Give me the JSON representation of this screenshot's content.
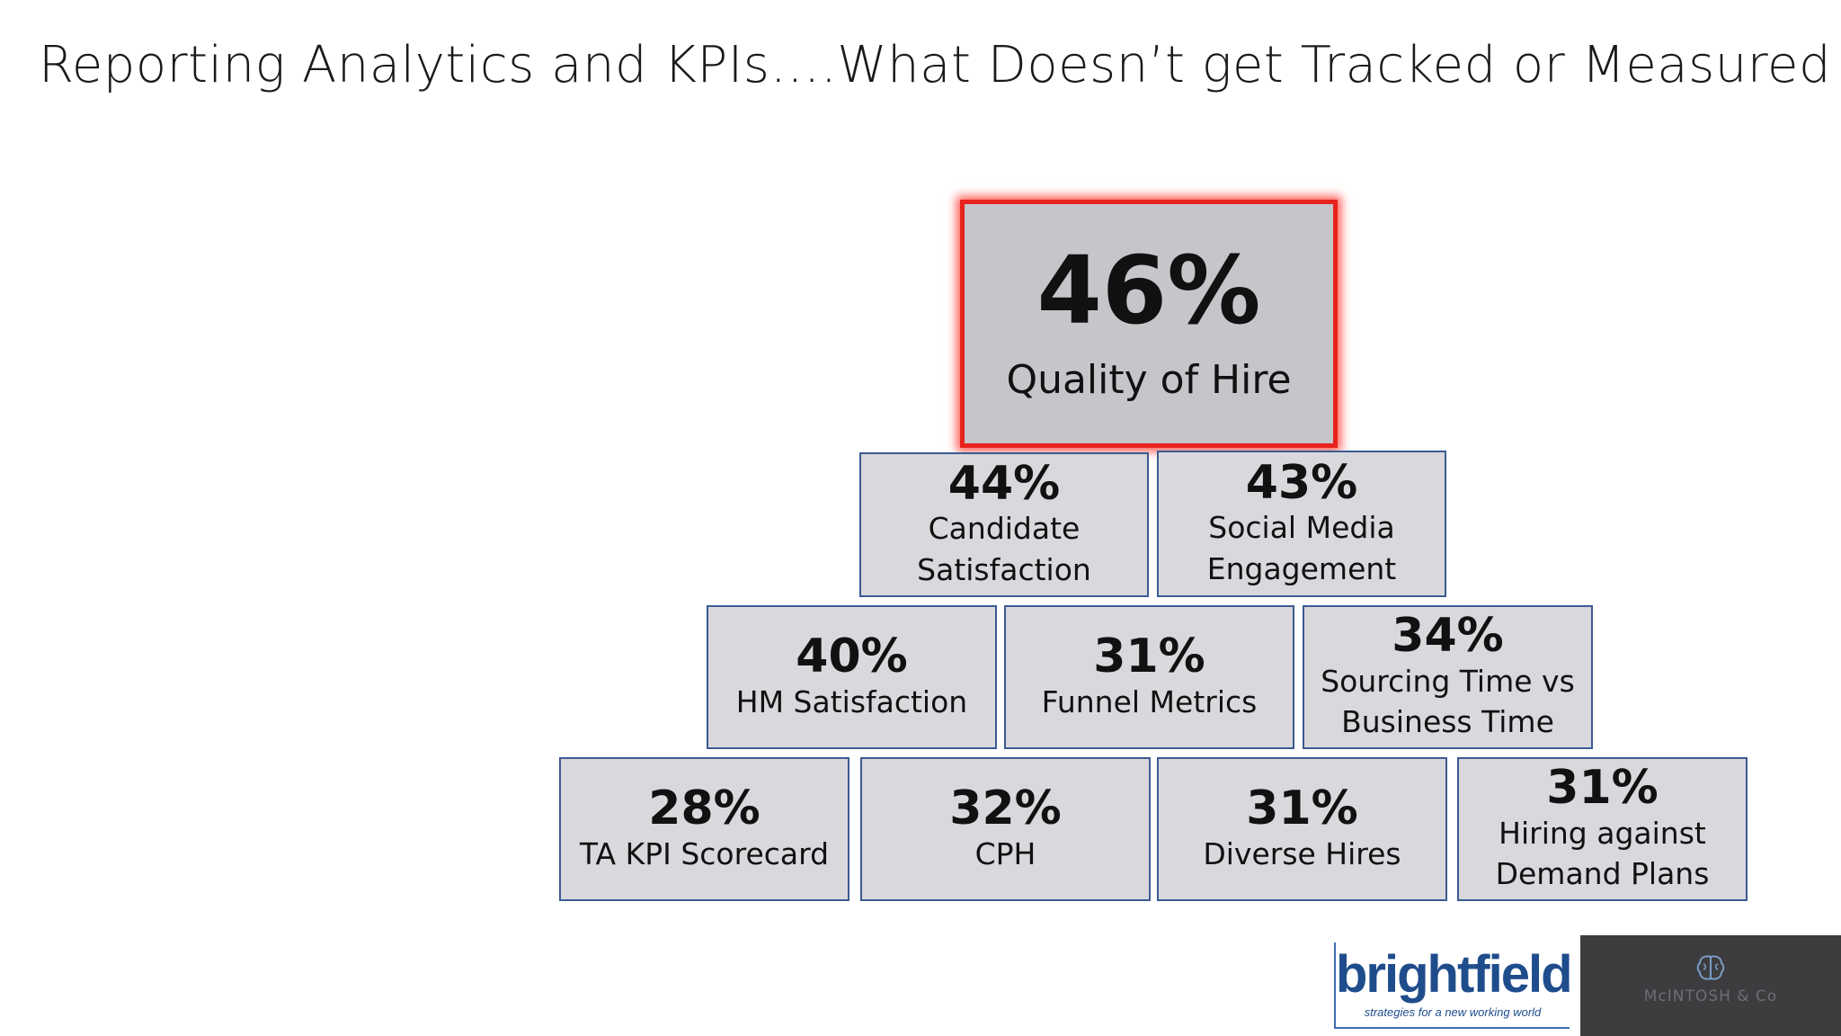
{
  "slide": {
    "title": "Reporting Analytics and KPIs….What Doesn’t get Tracked or Measured"
  },
  "pyramid": {
    "top": {
      "pct": "46%",
      "label": "Quality of Hire"
    },
    "row2": [
      {
        "pct": "44%",
        "label": "Candidate Satisfaction"
      },
      {
        "pct": "43%",
        "label": "Social Media Engagement"
      }
    ],
    "row3": [
      {
        "pct": "40%",
        "label": "HM Satisfaction"
      },
      {
        "pct": "31%",
        "label": "Funnel Metrics"
      },
      {
        "pct": "34%",
        "label": "Sourcing Time vs Business Time"
      }
    ],
    "row4": [
      {
        "pct": "28%",
        "label": "TA KPI Scorecard"
      },
      {
        "pct": "32%",
        "label": "CPH"
      },
      {
        "pct": "31%",
        "label": "Diverse Hires"
      },
      {
        "pct": "31%",
        "label": "Hiring against Demand Plans"
      }
    ]
  },
  "logos": {
    "brightfield": {
      "name": "brightfield",
      "tagline": "strategies for a new working world"
    },
    "mcintosh": {
      "name": "McINTOSH & Co",
      "icon": "brain-icon"
    }
  },
  "colors": {
    "box_fill": "#d9d8dc",
    "box_border": "#3b5b92",
    "highlight_border": "#e8231d",
    "brand_blue": "#1f4d8c",
    "dark_panel": "#3d3d3f"
  }
}
